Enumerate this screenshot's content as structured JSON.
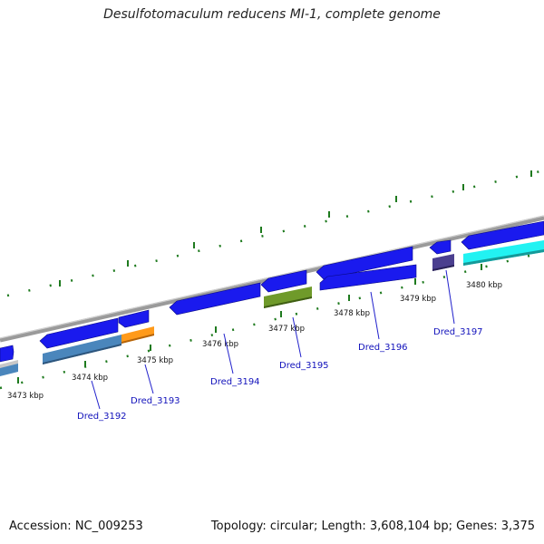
{
  "title": "Desulfotomaculum reducens MI-1, complete genome",
  "footer": {
    "accession": "Accession: NC_009253",
    "summary": "Topology: circular; Length: 3,608,104 bp; Genes: 3,375"
  },
  "colors": {
    "backbone": "#8a8a8a",
    "tick": "#1e7a1e",
    "gene_label": "#1111bb",
    "cds_blue": "#1a1aee",
    "steelblue": "#4a86bc",
    "orange": "#ff9a1a",
    "olive": "#6f9a2a",
    "purple": "#4b3f8f",
    "cyan": "#22f2f2",
    "grey": "#c8c8c8"
  },
  "tick_labels": [
    "3473 kbp",
    "3474 kbp",
    "3475 kbp",
    "3476 kbp",
    "3477 kbp",
    "3478 kbp",
    "3479 kbp",
    "3480 kbp"
  ],
  "gene_labels": [
    "Dred_3192",
    "Dred_3193",
    "Dred_3194",
    "Dred_3195",
    "Dred_3196",
    "Dred_3197"
  ]
}
